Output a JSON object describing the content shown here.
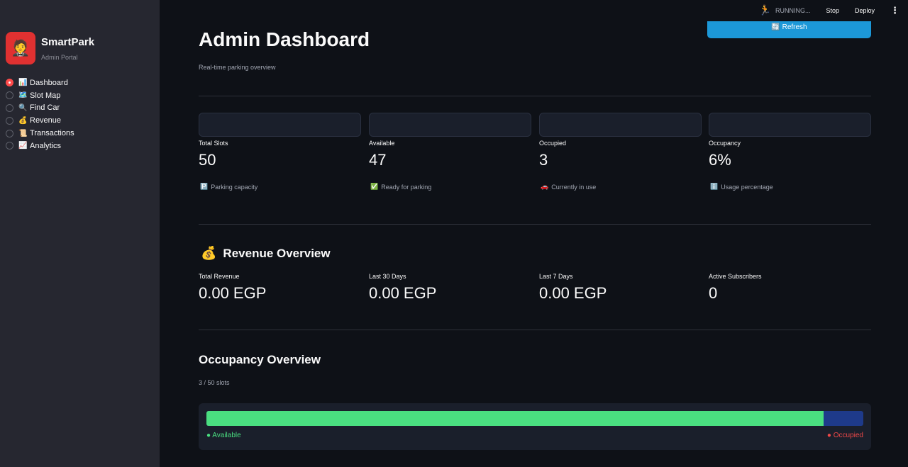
{
  "sidebar": {
    "brand_icon": "🤵",
    "brand_title": "SmartPark",
    "brand_sub": "Admin Portal",
    "items": [
      {
        "emoji": "📊",
        "label": "Dashboard",
        "checked": true
      },
      {
        "emoji": "🗺️",
        "label": "Slot Map",
        "checked": false
      },
      {
        "emoji": "🔍",
        "label": "Find Car",
        "checked": false
      },
      {
        "emoji": "💰",
        "label": "Revenue",
        "checked": false
      },
      {
        "emoji": "📜",
        "label": "Transactions",
        "checked": false
      },
      {
        "emoji": "📈",
        "label": "Analytics",
        "checked": false
      }
    ]
  },
  "topbar": {
    "running_icon": "running-man-icon",
    "running_text": "RUNNING...",
    "stop_label": "Stop",
    "deploy_label": "Deploy",
    "menu_icon": "kebab-menu-icon"
  },
  "header": {
    "refresh_label": "🔄 Refresh",
    "title": "Admin Dashboard",
    "subtitle": "Real-time parking overview"
  },
  "metrics": [
    {
      "label": "Total Slots",
      "value": "50",
      "note_icon": "🅿️",
      "note": "Parking capacity"
    },
    {
      "label": "Available",
      "value": "47",
      "note_icon": "✅",
      "note": "Ready for parking"
    },
    {
      "label": "Occupied",
      "value": "3",
      "note_icon": "🚗",
      "note": "Currently in use"
    },
    {
      "label": "Occupancy",
      "value": "6%",
      "note_icon": "ℹ️",
      "note": "Usage percentage"
    }
  ],
  "revenue": {
    "emoji": "💰",
    "title": "Revenue Overview",
    "items": [
      {
        "label": "Total Revenue",
        "value": "0.00 EGP"
      },
      {
        "label": "Last 30 Days",
        "value": "0.00 EGP"
      },
      {
        "label": "Last 7 Days",
        "value": "0.00 EGP"
      },
      {
        "label": "Active Subscribers",
        "value": "0"
      }
    ]
  },
  "occupancy": {
    "title": "Occupancy Overview",
    "slots_text": "3 / 50 slots",
    "available_fraction": 0.94,
    "legend_available": "● Available",
    "legend_occupied": "● Occupied",
    "colors": {
      "available": "#4ade80",
      "occupied": "#1e3a8a",
      "occupied_label": "#f04848"
    }
  }
}
